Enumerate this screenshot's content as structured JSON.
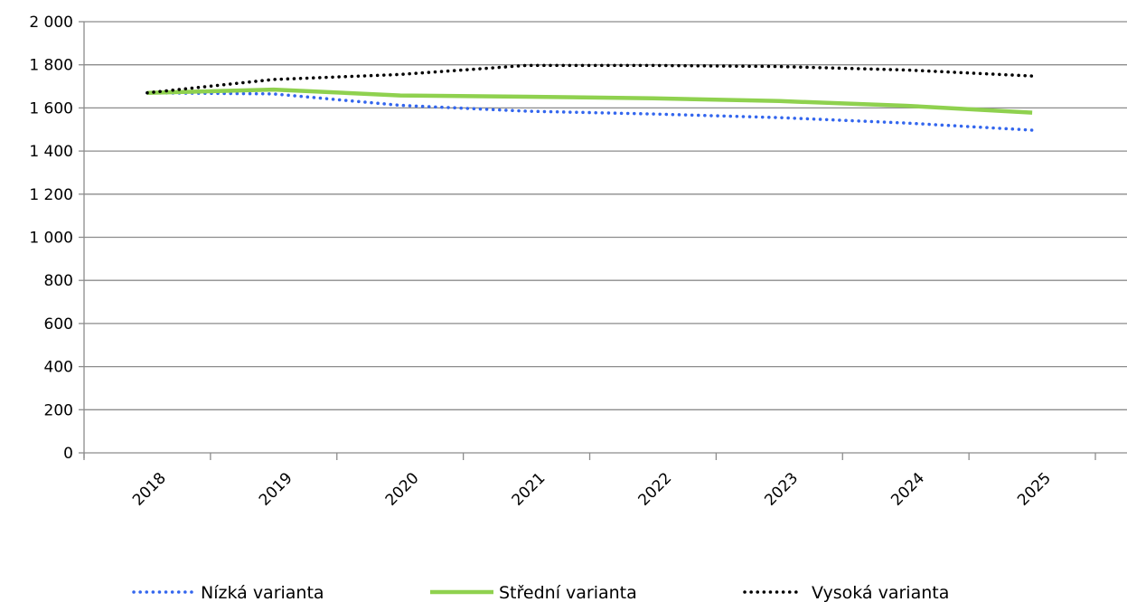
{
  "chart_data": {
    "type": "line",
    "title": "",
    "xlabel": "",
    "ylabel": "",
    "categories": [
      "2018",
      "2019",
      "2020",
      "2021",
      "2022",
      "2023",
      "2024",
      "2025"
    ],
    "ylim": [
      0,
      2000
    ],
    "yticks": [
      0,
      200,
      400,
      600,
      800,
      1000,
      1200,
      1400,
      1600,
      1800,
      2000
    ],
    "ytick_labels": [
      "0",
      "200",
      "400",
      "600",
      "800",
      "1 000",
      "1 200",
      "1 400",
      "1 600",
      "1 800",
      "2 000"
    ],
    "grid": "horizontal",
    "legend_position": "bottom",
    "series": [
      {
        "name": "Nízká varianta",
        "values": [
          1670,
          1665,
          1612,
          1585,
          1572,
          1555,
          1530,
          1497
        ],
        "color": "#3366ee",
        "style": "dotted"
      },
      {
        "name": "Střední varianta",
        "values": [
          1670,
          1685,
          1658,
          1652,
          1645,
          1632,
          1610,
          1578
        ],
        "color": "#8fd14f",
        "style": "solid"
      },
      {
        "name": "Vysoká varianta",
        "values": [
          1670,
          1732,
          1755,
          1797,
          1797,
          1792,
          1776,
          1748
        ],
        "color": "#000000",
        "style": "dotted"
      }
    ]
  }
}
